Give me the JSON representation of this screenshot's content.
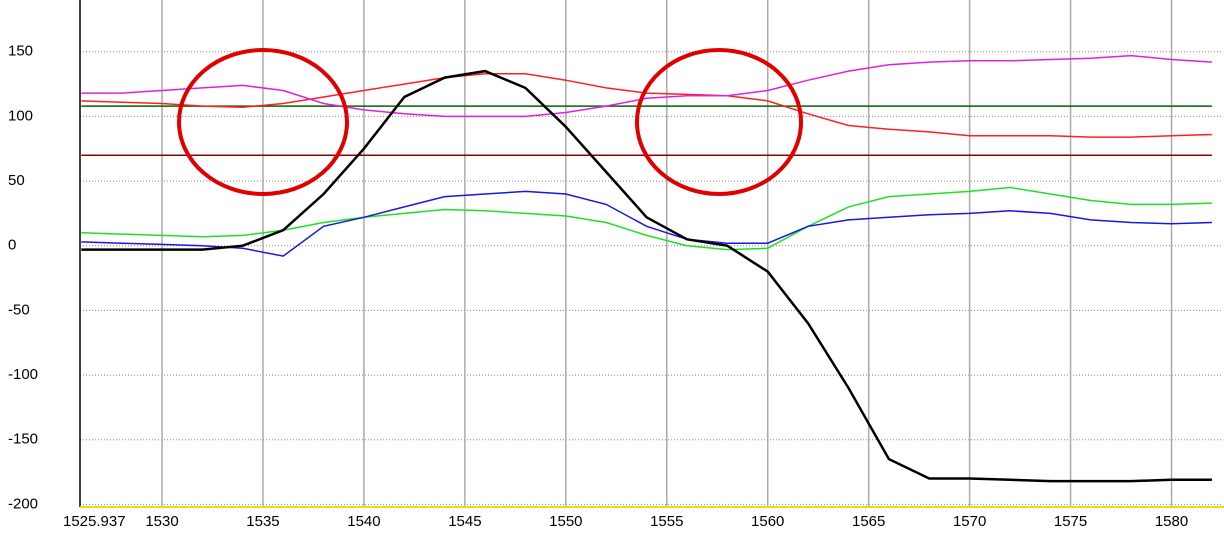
{
  "chart_data": {
    "type": "line",
    "x": [
      1526,
      1528,
      1530,
      1532,
      1534,
      1536,
      1538,
      1540,
      1542,
      1544,
      1546,
      1548,
      1550,
      1552,
      1554,
      1556,
      1558,
      1560,
      1562,
      1564,
      1566,
      1568,
      1570,
      1572,
      1574,
      1576,
      1578,
      1580,
      1582
    ],
    "series": [
      {
        "color": "#006400",
        "values": [
          108,
          108,
          108,
          108,
          108,
          108,
          108,
          108,
          108,
          108,
          108,
          108,
          108,
          108,
          108,
          108,
          108,
          108,
          108,
          108,
          108,
          108,
          108,
          108,
          108,
          108,
          108,
          108,
          108
        ]
      },
      {
        "color": "#8b0000",
        "values": [
          70,
          70,
          70,
          70,
          70,
          70,
          70,
          70,
          70,
          70,
          70,
          70,
          70,
          70,
          70,
          70,
          70,
          70,
          70,
          70,
          70,
          70,
          70,
          70,
          70,
          70,
          70,
          70,
          70
        ]
      },
      {
        "color": "#ff2020",
        "values": [
          112,
          111,
          110,
          108,
          107,
          110,
          115,
          120,
          125,
          130,
          133,
          133,
          128,
          122,
          118,
          117,
          116,
          112,
          102,
          93,
          90,
          88,
          85,
          85,
          85,
          84,
          84,
          85,
          86
        ]
      },
      {
        "color": "#e020e0",
        "values": [
          118,
          118,
          120,
          122,
          124,
          120,
          110,
          105,
          102,
          100,
          100,
          100,
          103,
          108,
          114,
          116,
          116,
          120,
          128,
          135,
          140,
          142,
          143,
          143,
          144,
          145,
          147,
          144,
          142
        ]
      },
      {
        "color": "#20e020",
        "values": [
          10,
          9,
          8,
          7,
          8,
          12,
          18,
          22,
          25,
          28,
          27,
          25,
          23,
          18,
          8,
          0,
          -3,
          -2,
          15,
          30,
          38,
          40,
          42,
          45,
          40,
          35,
          32,
          32,
          33
        ]
      },
      {
        "color": "#1818e0",
        "values": [
          3,
          2,
          1,
          0,
          -2,
          -8,
          15,
          22,
          30,
          38,
          40,
          42,
          40,
          32,
          15,
          5,
          2,
          2,
          15,
          20,
          22,
          24,
          25,
          27,
          25,
          20,
          18,
          17,
          18
        ]
      },
      {
        "color": "#000000",
        "values": [
          -3,
          -3,
          -3,
          -3,
          0,
          12,
          40,
          75,
          115,
          130,
          135,
          122,
          92,
          57,
          22,
          5,
          0,
          -20,
          -60,
          -110,
          -165,
          -180,
          -180,
          -181,
          -182,
          -182,
          -182,
          -181,
          -181
        ]
      }
    ],
    "xlim": [
      1525.937,
      1582.5
    ],
    "xticks": [
      1525.937,
      1530,
      1535,
      1540,
      1545,
      1550,
      1555,
      1560,
      1565,
      1570,
      1575,
      1580
    ],
    "ylim": [
      -202,
      190
    ],
    "yticks": [
      150,
      100,
      50,
      0,
      -50,
      -100,
      -150,
      -200
    ],
    "grid": true
  }
}
